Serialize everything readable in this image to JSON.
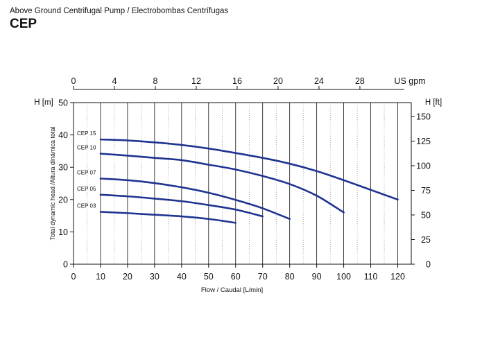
{
  "header": {
    "subtitle": "Above Ground Centrifugal Pump / Electrobombas Centrífugas",
    "title": "CEP"
  },
  "chart_data": {
    "type": "line",
    "title": "CEP",
    "subtitle": "Above Ground Centrifugal Pump / Electrobombas Centrífugas",
    "xlabel": "Flow / Caudal [L/min]",
    "ylabel": "Total dynamic head /Altura dinámica total",
    "y_unit_label": "H [m]",
    "y2_unit_label": "H [ft]",
    "x2_unit_label": "US gpm",
    "xlim": [
      0,
      125
    ],
    "ylim": [
      0,
      50
    ],
    "x_ticks": [
      "0",
      "10",
      "20",
      "30",
      "40",
      "50",
      "60",
      "70",
      "80",
      "90",
      "100",
      "110",
      "120"
    ],
    "y_ticks": [
      "0",
      "10",
      "20",
      "30",
      "40",
      "50"
    ],
    "x2_ticks": [
      "0",
      "4",
      "8",
      "12",
      "16",
      "20",
      "24",
      "28"
    ],
    "y2_ticks": [
      "0",
      "25",
      "50",
      "75",
      "100",
      "125",
      "150"
    ],
    "grid": "vertical",
    "line_color": "#1f3391",
    "series": [
      {
        "name": "CEP 15",
        "x": [
          10,
          20,
          30,
          40,
          50,
          60,
          70,
          80,
          90,
          100,
          110,
          120
        ],
        "y": [
          38.6,
          38.3,
          37.7,
          36.9,
          35.8,
          34.4,
          32.9,
          31.1,
          28.8,
          26.0,
          23.0,
          20.0
        ]
      },
      {
        "name": "CEP 10",
        "x": [
          10,
          20,
          30,
          40,
          50,
          60,
          70,
          80,
          90,
          100
        ],
        "y": [
          34.2,
          33.6,
          32.9,
          32.2,
          30.8,
          29.3,
          27.3,
          24.8,
          21.2,
          16.0
        ]
      },
      {
        "name": "CEP 07",
        "x": [
          10,
          20,
          30,
          40,
          50,
          60,
          70,
          80
        ],
        "y": [
          26.5,
          26.0,
          25.1,
          23.8,
          22.1,
          19.9,
          17.3,
          14.0
        ]
      },
      {
        "name": "CEP 05",
        "x": [
          10,
          20,
          30,
          40,
          50,
          60,
          70
        ],
        "y": [
          21.5,
          21.0,
          20.3,
          19.5,
          18.3,
          16.9,
          14.8
        ]
      },
      {
        "name": "CEP 03",
        "x": [
          10,
          20,
          30,
          40,
          50,
          60
        ],
        "y": [
          16.2,
          15.8,
          15.3,
          14.8,
          14.0,
          12.8
        ]
      }
    ]
  }
}
